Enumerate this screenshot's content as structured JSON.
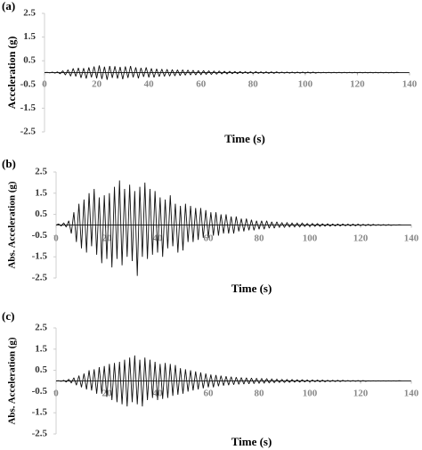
{
  "chart_data": [
    {
      "type": "line",
      "title": "(a)",
      "x_label": "Time (s)",
      "y_label": "Acceleration (g)",
      "color": "#111111",
      "xlim": [
        0,
        140
      ],
      "xticks": [
        0,
        20,
        40,
        60,
        80,
        100,
        120,
        140
      ],
      "ylim": [
        -2.5,
        2.5
      ],
      "yticks": [
        2.5,
        1.5,
        0.5,
        -0.5,
        -1.5,
        -2.5
      ],
      "x": [
        0,
        1,
        2,
        3,
        4,
        5,
        6,
        7,
        8,
        9,
        10,
        11,
        12,
        13,
        14,
        15,
        16,
        17,
        18,
        19,
        20,
        21,
        22,
        23,
        24,
        25,
        26,
        27,
        28,
        29,
        30,
        31,
        32,
        33,
        34,
        35,
        36,
        37,
        38,
        39,
        40,
        41,
        42,
        43,
        44,
        45,
        46,
        47,
        48,
        49,
        50,
        51,
        52,
        53,
        54,
        55,
        56,
        57,
        58,
        59,
        60,
        61,
        62,
        63,
        64,
        65,
        66,
        67,
        68,
        69,
        70,
        71,
        72,
        73,
        74,
        75,
        76,
        77,
        78,
        79,
        80,
        81,
        82,
        83,
        84,
        85,
        86,
        87,
        88,
        89,
        90,
        91,
        92,
        93,
        94,
        95,
        96,
        97,
        98,
        99,
        100,
        101,
        102,
        103,
        104,
        105,
        106,
        107,
        108,
        109,
        110,
        111,
        112,
        113,
        114,
        115,
        116,
        117,
        118,
        119,
        120,
        121,
        122,
        123,
        124,
        125,
        126,
        127,
        128,
        129,
        130,
        131,
        132,
        133,
        134,
        135,
        136
      ],
      "values": [
        0,
        0.01,
        -0.01,
        0.02,
        -0.02,
        0.03,
        -0.05,
        0.08,
        -0.1,
        0.12,
        -0.15,
        0.18,
        -0.16,
        0.2,
        -0.22,
        0.19,
        -0.25,
        0.22,
        -0.2,
        0.26,
        -0.24,
        0.3,
        -0.27,
        0.25,
        -0.3,
        0.28,
        -0.22,
        0.27,
        -0.25,
        0.24,
        -0.28,
        0.26,
        -0.22,
        0.28,
        -0.2,
        0.22,
        -0.24,
        0.2,
        -0.18,
        0.22,
        -0.2,
        0.18,
        -0.2,
        0.16,
        -0.17,
        0.15,
        -0.16,
        0.14,
        -0.15,
        0.13,
        -0.14,
        0.12,
        -0.13,
        0.12,
        -0.11,
        0.11,
        -0.1,
        0.1,
        -0.1,
        0.09,
        -0.09,
        0.09,
        -0.08,
        0.08,
        -0.08,
        0.07,
        -0.07,
        0.07,
        -0.06,
        0.06,
        -0.06,
        0.06,
        -0.05,
        0.05,
        -0.05,
        0.05,
        -0.04,
        0.04,
        -0.04,
        0.04,
        -0.04,
        0.04,
        -0.03,
        0.03,
        -0.03,
        0.03,
        -0.03,
        0.03,
        -0.03,
        0.03,
        -0.02,
        0.02,
        -0.02,
        0.02,
        -0.02,
        0.02,
        -0.02,
        0.02,
        -0.02,
        0.02,
        -0.02,
        0.02,
        -0.02,
        0.02,
        -0.02,
        0.01,
        -0.01,
        0.01,
        -0.01,
        0.01,
        -0.01,
        0.01,
        -0.01,
        0.01,
        -0.01,
        0.01,
        -0.01,
        0.01,
        -0.01,
        0.01,
        -0.01,
        0.01,
        -0.01,
        0.01,
        -0.01,
        0.01,
        -0.01,
        0.01,
        -0.01,
        0.01,
        -0.01,
        0.01,
        -0.01,
        0.01,
        -0.01,
        0.01,
        0
      ]
    },
    {
      "type": "line",
      "title": "(b)",
      "x_label": "Time (s)",
      "y_label": "Abs. Acceleration (g)",
      "color": "#111111",
      "xlim": [
        0,
        140
      ],
      "xticks": [
        0,
        20,
        40,
        60,
        80,
        100,
        120,
        140
      ],
      "ylim": [
        -2.5,
        2.5
      ],
      "yticks": [
        2.5,
        1.5,
        0.5,
        -0.5,
        -1.5,
        -2.5
      ],
      "x": [
        0,
        1,
        2,
        3,
        4,
        5,
        6,
        7,
        8,
        9,
        10,
        11,
        12,
        13,
        14,
        15,
        16,
        17,
        18,
        19,
        20,
        21,
        22,
        23,
        24,
        25,
        26,
        27,
        28,
        29,
        30,
        31,
        32,
        33,
        34,
        35,
        36,
        37,
        38,
        39,
        40,
        41,
        42,
        43,
        44,
        45,
        46,
        47,
        48,
        49,
        50,
        51,
        52,
        53,
        54,
        55,
        56,
        57,
        58,
        59,
        60,
        61,
        62,
        63,
        64,
        65,
        66,
        67,
        68,
        69,
        70,
        71,
        72,
        73,
        74,
        75,
        76,
        77,
        78,
        79,
        80,
        81,
        82,
        83,
        84,
        85,
        86,
        87,
        88,
        89,
        90,
        91,
        92,
        93,
        94,
        95,
        96,
        97,
        98,
        99,
        100,
        101,
        102,
        103,
        104,
        105,
        106,
        107,
        108,
        109,
        110,
        111,
        112,
        113,
        114,
        115,
        116,
        117,
        118,
        119,
        120,
        121,
        122,
        123,
        124,
        125,
        126,
        127,
        128,
        129,
        130,
        131,
        132,
        133,
        134,
        135,
        136
      ],
      "values": [
        0,
        0.05,
        -0.05,
        0.1,
        -0.1,
        0.2,
        -0.4,
        0.6,
        -0.8,
        1.0,
        -1.1,
        1.2,
        -1.3,
        1.5,
        -1.0,
        1.7,
        -1.4,
        1.3,
        -1.8,
        1.4,
        -1.6,
        1.5,
        -2.0,
        1.8,
        -1.6,
        2.1,
        -1.9,
        1.7,
        -1.5,
        1.9,
        -1.7,
        1.6,
        -2.4,
        1.8,
        -1.5,
        2.0,
        -1.6,
        1.7,
        -1.4,
        1.6,
        -1.3,
        1.3,
        -1.5,
        1.2,
        -1.1,
        1.4,
        -1.0,
        1.0,
        -1.3,
        0.9,
        -1.2,
        1.0,
        -0.8,
        0.9,
        -0.8,
        0.8,
        -0.7,
        0.8,
        -0.6,
        0.7,
        -0.6,
        0.6,
        -0.5,
        0.6,
        -0.5,
        0.5,
        -0.4,
        0.5,
        -0.4,
        0.4,
        -0.4,
        0.4,
        -0.3,
        0.3,
        -0.3,
        0.3,
        -0.25,
        0.25,
        -0.25,
        0.2,
        -0.2,
        0.2,
        -0.2,
        0.2,
        -0.15,
        0.15,
        -0.15,
        0.15,
        -0.12,
        0.12,
        -0.12,
        0.12,
        -0.1,
        0.1,
        -0.1,
        0.1,
        -0.1,
        0.1,
        -0.08,
        0.08,
        -0.08,
        0.08,
        -0.07,
        0.07,
        -0.07,
        0.06,
        -0.06,
        0.06,
        -0.06,
        0.05,
        -0.05,
        0.05,
        -0.05,
        0.05,
        -0.04,
        0.04,
        -0.04,
        0.04,
        -0.04,
        0.04,
        -0.03,
        0.03,
        -0.03,
        0.03,
        -0.03,
        0.03,
        -0.02,
        0.02,
        -0.02,
        0.02,
        -0.02,
        0.02,
        -0.02,
        0.01,
        -0.01,
        0.01,
        0
      ]
    },
    {
      "type": "line",
      "title": "(c)",
      "x_label": "Time (s)",
      "y_label": "Abs. Acceleration (g)",
      "color": "#111111",
      "xlim": [
        0,
        140
      ],
      "xticks": [
        0,
        20,
        40,
        60,
        80,
        100,
        120,
        140
      ],
      "ylim": [
        -2.5,
        2.5
      ],
      "yticks": [
        2.5,
        1.5,
        0.5,
        -0.5,
        -1.5,
        -2.5
      ],
      "x": [
        0,
        1,
        2,
        3,
        4,
        5,
        6,
        7,
        8,
        9,
        10,
        11,
        12,
        13,
        14,
        15,
        16,
        17,
        18,
        19,
        20,
        21,
        22,
        23,
        24,
        25,
        26,
        27,
        28,
        29,
        30,
        31,
        32,
        33,
        34,
        35,
        36,
        37,
        38,
        39,
        40,
        41,
        42,
        43,
        44,
        45,
        46,
        47,
        48,
        49,
        50,
        51,
        52,
        53,
        54,
        55,
        56,
        57,
        58,
        59,
        60,
        61,
        62,
        63,
        64,
        65,
        66,
        67,
        68,
        69,
        70,
        71,
        72,
        73,
        74,
        75,
        76,
        77,
        78,
        79,
        80,
        81,
        82,
        83,
        84,
        85,
        86,
        87,
        88,
        89,
        90,
        91,
        92,
        93,
        94,
        95,
        96,
        97,
        98,
        99,
        100,
        101,
        102,
        103,
        104,
        105,
        106,
        107,
        108,
        109,
        110,
        111,
        112,
        113,
        114,
        115,
        116,
        117,
        118,
        119,
        120,
        121,
        122,
        123,
        124,
        125,
        126,
        127,
        128,
        129,
        130,
        131,
        132,
        133,
        134,
        135,
        136
      ],
      "values": [
        0,
        0.01,
        -0.02,
        0.03,
        -0.05,
        0.08,
        -0.1,
        0.15,
        -0.2,
        0.25,
        -0.3,
        0.35,
        -0.4,
        0.5,
        -0.45,
        0.55,
        -0.6,
        0.65,
        -0.6,
        0.7,
        -0.75,
        0.8,
        -0.9,
        0.85,
        -1.0,
        0.9,
        -1.1,
        1.0,
        -1.2,
        1.1,
        -1.0,
        1.2,
        -1.1,
        1.0,
        -1.2,
        1.1,
        -0.9,
        1.0,
        -0.8,
        0.9,
        -0.9,
        0.8,
        -0.85,
        0.85,
        -0.8,
        0.8,
        -0.7,
        0.75,
        -0.65,
        0.6,
        -0.6,
        0.55,
        -0.5,
        0.5,
        -0.45,
        0.45,
        -0.4,
        0.4,
        -0.35,
        0.35,
        -0.3,
        0.3,
        -0.3,
        0.28,
        -0.25,
        0.25,
        -0.22,
        0.22,
        -0.2,
        0.2,
        -0.18,
        0.18,
        -0.16,
        0.16,
        -0.15,
        0.15,
        -0.14,
        0.14,
        -0.13,
        0.13,
        -0.12,
        0.12,
        -0.11,
        0.11,
        -0.1,
        0.1,
        -0.09,
        0.09,
        -0.08,
        0.08,
        -0.08,
        0.07,
        -0.07,
        0.07,
        -0.06,
        0.06,
        -0.06,
        0.06,
        -0.05,
        0.05,
        -0.05,
        0.05,
        -0.04,
        0.04,
        -0.04,
        0.04,
        -0.04,
        0.03,
        -0.03,
        0.03,
        -0.03,
        0.03,
        -0.03,
        0.03,
        -0.02,
        0.02,
        -0.02,
        0.02,
        -0.02,
        0.02,
        -0.02,
        0.02,
        -0.02,
        0.01,
        -0.01,
        0.01,
        -0.01,
        0.01,
        -0.01,
        0.01,
        -0.01,
        0.01,
        -0.01,
        0.01,
        -0.01,
        0.01,
        0
      ]
    }
  ]
}
